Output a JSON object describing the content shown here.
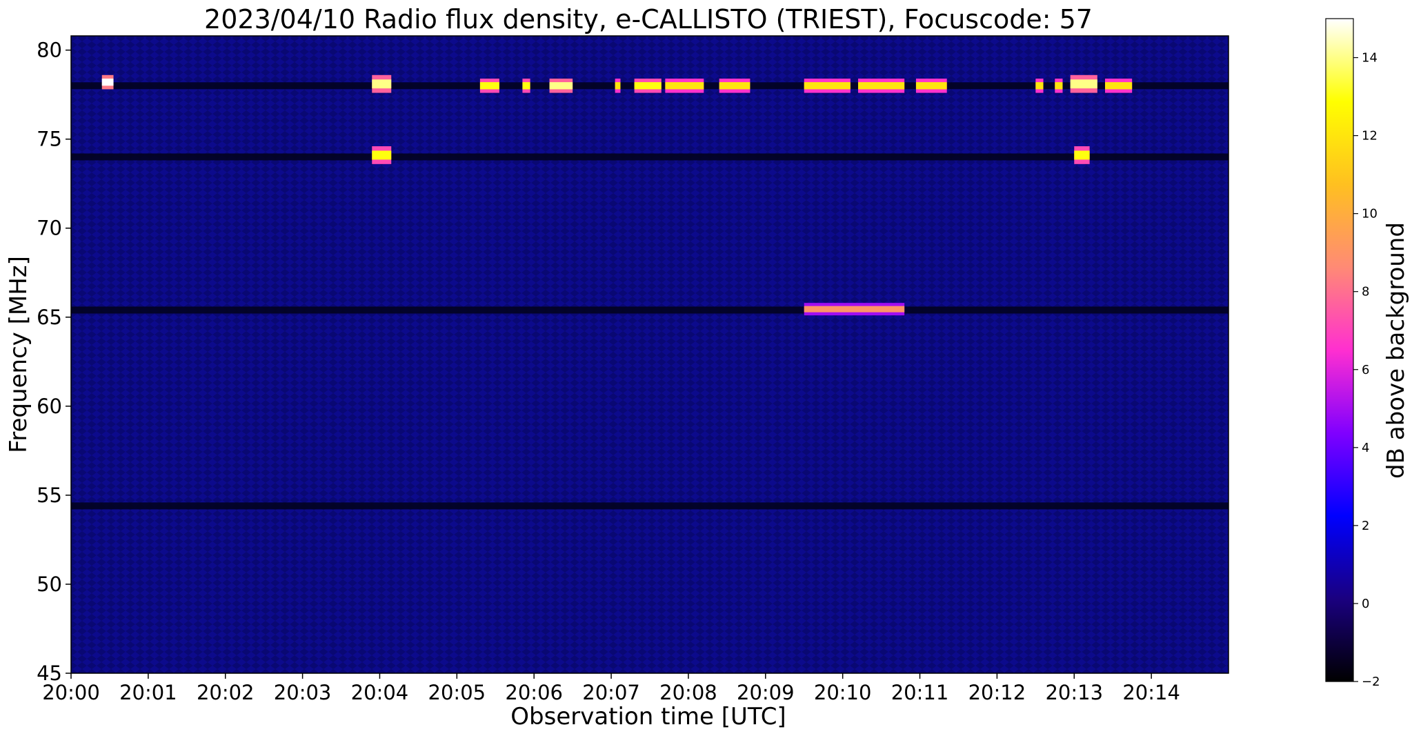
{
  "chart_data": {
    "type": "heatmap",
    "title": "2023/04/10  Radio flux density, e-CALLISTO (TRIEST), Focuscode: 57",
    "xlabel": "Observation time [UTC]",
    "ylabel": "Frequency [MHz]",
    "x_ticks": [
      "20:00",
      "20:01",
      "20:02",
      "20:03",
      "20:04",
      "20:05",
      "20:06",
      "20:07",
      "20:08",
      "20:09",
      "20:10",
      "20:11",
      "20:12",
      "20:13",
      "20:14"
    ],
    "xlim_minutes": [
      0,
      15
    ],
    "y_ticks": [
      45,
      50,
      55,
      60,
      65,
      70,
      75,
      80
    ],
    "ylim": [
      45,
      80.8
    ],
    "colorbar": {
      "label": "dB above background",
      "ticks": [
        -2,
        0,
        2,
        4,
        6,
        8,
        10,
        12,
        14
      ],
      "range": [
        -2,
        15
      ],
      "colormap": "gnuplot2",
      "colors": [
        "#000000",
        "#1a0080",
        "#0000ff",
        "#8000ff",
        "#ff2fd0",
        "#ff8a75",
        "#ffc020",
        "#ffff00",
        "#ffffff"
      ]
    },
    "background_level_db": 0.5,
    "dark_bands_mhz": [
      78,
      74,
      65.4,
      54.4
    ],
    "bursts": [
      {
        "start_min": 0.4,
        "end_min": 0.55,
        "freq_low": 77.8,
        "freq_high": 78.6,
        "db": 15
      },
      {
        "start_min": 3.9,
        "end_min": 4.15,
        "freq_low": 77.6,
        "freq_high": 78.6,
        "db": 14
      },
      {
        "start_min": 3.9,
        "end_min": 4.15,
        "freq_low": 73.6,
        "freq_high": 74.6,
        "db": 13
      },
      {
        "start_min": 5.3,
        "end_min": 5.55,
        "freq_low": 77.6,
        "freq_high": 78.4,
        "db": 13
      },
      {
        "start_min": 5.85,
        "end_min": 5.95,
        "freq_low": 77.6,
        "freq_high": 78.4,
        "db": 13
      },
      {
        "start_min": 6.2,
        "end_min": 6.5,
        "freq_low": 77.6,
        "freq_high": 78.4,
        "db": 14
      },
      {
        "start_min": 7.05,
        "end_min": 7.12,
        "freq_low": 77.6,
        "freq_high": 78.4,
        "db": 12
      },
      {
        "start_min": 7.3,
        "end_min": 7.65,
        "freq_low": 77.6,
        "freq_high": 78.4,
        "db": 13
      },
      {
        "start_min": 7.7,
        "end_min": 8.2,
        "freq_low": 77.6,
        "freq_high": 78.4,
        "db": 12
      },
      {
        "start_min": 8.4,
        "end_min": 8.8,
        "freq_low": 77.6,
        "freq_high": 78.4,
        "db": 12
      },
      {
        "start_min": 9.5,
        "end_min": 10.8,
        "freq_low": 65.1,
        "freq_high": 65.8,
        "db": 9
      },
      {
        "start_min": 9.5,
        "end_min": 10.1,
        "freq_low": 77.6,
        "freq_high": 78.4,
        "db": 12
      },
      {
        "start_min": 10.2,
        "end_min": 10.8,
        "freq_low": 77.6,
        "freq_high": 78.4,
        "db": 12
      },
      {
        "start_min": 10.95,
        "end_min": 11.35,
        "freq_low": 77.6,
        "freq_high": 78.4,
        "db": 12
      },
      {
        "start_min": 12.5,
        "end_min": 12.6,
        "freq_low": 77.6,
        "freq_high": 78.4,
        "db": 12
      },
      {
        "start_min": 12.75,
        "end_min": 12.85,
        "freq_low": 77.6,
        "freq_high": 78.4,
        "db": 12
      },
      {
        "start_min": 12.95,
        "end_min": 13.3,
        "freq_low": 77.6,
        "freq_high": 78.6,
        "db": 14
      },
      {
        "start_min": 13.0,
        "end_min": 13.2,
        "freq_low": 73.6,
        "freq_high": 74.6,
        "db": 13
      },
      {
        "start_min": 13.4,
        "end_min": 13.75,
        "freq_low": 77.6,
        "freq_high": 78.4,
        "db": 12
      }
    ]
  }
}
